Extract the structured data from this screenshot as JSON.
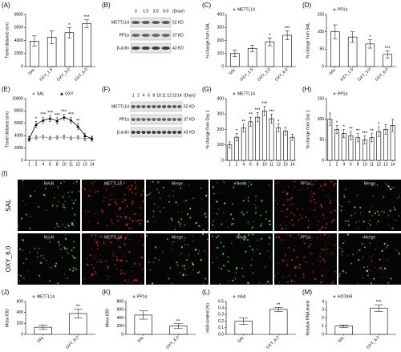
{
  "chart_data": [
    {
      "type": "bar",
      "panel": "(A)",
      "ylabel": "Travel distance (cm)",
      "categories": [
        "SAL",
        "OXY_1.5",
        "OXY_3.0",
        "OXY_6.0"
      ],
      "ylim": [
        0,
        8000
      ],
      "yticks": [
        0,
        2000,
        4000,
        6000,
        8000
      ],
      "series": [
        {
          "color": "#ffffff",
          "values": [
            3900,
            4500,
            5200,
            6600
          ],
          "errors": [
            800,
            1000,
            800,
            600
          ],
          "stars": [
            null,
            null,
            "*",
            "***"
          ]
        }
      ]
    },
    {
      "type": "bar",
      "panel": "(C)",
      "ylabel": "% change from SAL",
      "categories": [
        "SAL",
        "OXY_1.5",
        "OXY_3.0",
        "OXY_6.0"
      ],
      "ylim": [
        0,
        400
      ],
      "yticks": [
        0,
        100,
        200,
        300,
        400
      ],
      "series": [
        {
          "name": "METTL14",
          "color": "#ffffff",
          "values": [
            100,
            140,
            190,
            240
          ],
          "errors": [
            25,
            25,
            30,
            35
          ],
          "stars": [
            null,
            null,
            "*",
            "***"
          ]
        }
      ]
    },
    {
      "type": "bar",
      "panel": "(D)",
      "ylabel": "% change from SAL",
      "categories": [
        "SAL",
        "OXY_1.5",
        "OXY_3.0",
        "OXY_6.0"
      ],
      "ylim": [
        0,
        150
      ],
      "yticks": [
        0,
        50,
        100,
        150
      ],
      "series": [
        {
          "name": "PP1α",
          "color": "#ffffff",
          "values": [
            100,
            85,
            65,
            35
          ],
          "errors": [
            20,
            15,
            12,
            10
          ],
          "stars": [
            null,
            null,
            "*",
            "***"
          ]
        }
      ]
    },
    {
      "type": "line",
      "panel": "(E)",
      "ylabel": "Travel distance (cm)",
      "categories": [
        "1",
        "2",
        "4",
        "6",
        "8",
        "10",
        "11",
        "12",
        "13",
        "14"
      ],
      "ylim": [
        0,
        10000
      ],
      "yticks": [
        0,
        2000,
        4000,
        6000,
        8000,
        10000
      ],
      "series": [
        {
          "name": "SAL",
          "color": "#999999",
          "marker": "circle",
          "values": [
            3500,
            3700,
            3800,
            3600,
            3700,
            3800,
            3600,
            3700,
            3500,
            3600
          ],
          "errors": [
            300,
            300,
            300,
            300,
            300,
            300,
            300,
            300,
            300,
            300
          ],
          "stars": [
            null,
            null,
            null,
            null,
            null,
            null,
            null,
            null,
            null,
            null
          ]
        },
        {
          "name": "OXY",
          "color": "#000000",
          "marker": "triangle",
          "values": [
            3500,
            5800,
            6500,
            6800,
            6400,
            7000,
            6500,
            5500,
            4000,
            3500
          ],
          "errors": [
            400,
            500,
            500,
            500,
            500,
            500,
            500,
            500,
            400,
            400
          ],
          "stars": [
            null,
            "*",
            "***",
            "***",
            "***",
            "***",
            "***",
            "**",
            null,
            null
          ]
        }
      ]
    },
    {
      "type": "bar",
      "panel": "(G)",
      "ylabel": "% change from Day 1",
      "categories": [
        "1",
        "2",
        "4",
        "6",
        "8",
        "10",
        "11",
        "12",
        "13",
        "14"
      ],
      "ylim": [
        0,
        400
      ],
      "yticks": [
        0,
        100,
        200,
        300,
        400
      ],
      "series": [
        {
          "name": "METTL14",
          "color": "#ffffff",
          "values": [
            100,
            150,
            210,
            250,
            280,
            320,
            270,
            210,
            190,
            150
          ],
          "errors": [
            20,
            25,
            25,
            30,
            30,
            30,
            30,
            25,
            25,
            20
          ],
          "stars": [
            null,
            "*",
            "**",
            "**",
            "***",
            "***",
            "***",
            "*",
            null,
            null
          ]
        }
      ]
    },
    {
      "type": "bar",
      "panel": "(H)",
      "ylabel": "% change from Day 1",
      "categories": [
        "1",
        "2",
        "4",
        "6",
        "8",
        "10",
        "11",
        "12",
        "13",
        "14"
      ],
      "ylim": [
        0,
        150
      ],
      "yticks": [
        0,
        50,
        100,
        150
      ],
      "series": [
        {
          "name": "PP1α",
          "color": "#ffffff",
          "values": [
            100,
            75,
            65,
            60,
            55,
            50,
            55,
            70,
            75,
            85
          ],
          "errors": [
            15,
            10,
            10,
            10,
            10,
            10,
            10,
            12,
            12,
            15
          ],
          "stars": [
            null,
            "*",
            "*",
            "**",
            "**",
            "***",
            "**",
            "*",
            null,
            null
          ]
        }
      ]
    },
    {
      "type": "bar",
      "panel": "(J)",
      "ylabel": "Mean IOD",
      "categories": [
        "SAL",
        "OXY_6.0"
      ],
      "ylim": [
        0,
        600
      ],
      "yticks": [
        0,
        200,
        400,
        600
      ],
      "series": [
        {
          "name": "METTL14",
          "color": "#ffffff",
          "values": [
            130,
            380
          ],
          "errors": [
            40,
            80
          ],
          "stars": [
            null,
            "**"
          ]
        }
      ]
    },
    {
      "type": "bar",
      "panel": "(K)",
      "ylabel": "Mean IOD",
      "categories": [
        "SAL",
        "OXY_6.0"
      ],
      "ylim": [
        0,
        800
      ],
      "yticks": [
        0,
        200,
        400,
        600,
        800
      ],
      "series": [
        {
          "name": "PP1α",
          "color": "#ffffff",
          "values": [
            470,
            200
          ],
          "errors": [
            100,
            60
          ],
          "stars": [
            null,
            "**"
          ]
        }
      ]
    },
    {
      "type": "bar",
      "panel": "(L)",
      "ylabel": "m6A content (%)",
      "categories": [
        "SAL",
        "OXY_6.0"
      ],
      "ylim": [
        0,
        0.5
      ],
      "yticks": [
        {
          "value": 0,
          "label": "0.0"
        },
        0.1,
        0.2,
        0.3,
        0.4,
        0.5
      ],
      "series": [
        {
          "name": "m6A",
          "color": "#ffffff",
          "values": [
            0.2,
            0.38
          ],
          "errors": [
            0.05,
            0.03
          ],
          "stars": [
            null,
            "**"
          ]
        }
      ]
    },
    {
      "type": "bar",
      "panel": "(M)",
      "ylabel": "Relative RNA levels",
      "categories": [
        "SAL",
        "OXY_6.0"
      ],
      "ylim": [
        0,
        4
      ],
      "yticks": [
        0,
        1,
        2,
        3,
        4
      ],
      "series": [
        {
          "name": "HOTAIR",
          "color": "#ffffff",
          "values": [
            1.0,
            3.2
          ],
          "errors": [
            0.15,
            0.4
          ],
          "stars": [
            null,
            "***"
          ]
        }
      ]
    }
  ],
  "blots": [
    {
      "panel": "(B)",
      "lanes": [
        "0",
        "1.5",
        "3.0",
        "6.0"
      ],
      "unit": "(Dose)",
      "rows": [
        {
          "name": "METTL14",
          "size": "52 KD"
        },
        {
          "name": "PP1α",
          "size": "37 KD"
        },
        {
          "name": "β-actin",
          "size": "43 KD"
        }
      ]
    },
    {
      "panel": "(F)",
      "lanes": [
        "1",
        "2",
        "4",
        "6",
        "8",
        "10",
        "11",
        "12",
        "13",
        "14"
      ],
      "unit": "(Days)",
      "rows": [
        {
          "name": "METTL14",
          "size": "52 KD"
        },
        {
          "name": "PP1α",
          "size": "37 KD"
        },
        {
          "name": "β-actin",
          "size": "43 KD"
        }
      ]
    }
  ],
  "images": {
    "panel": "(I)",
    "row_labels": [
      "SAL",
      "OXY_6.0"
    ],
    "column_labels": [
      "NeuN",
      "METTL14",
      "Merge",
      "NeuN",
      "PP1α",
      "Merge"
    ]
  }
}
